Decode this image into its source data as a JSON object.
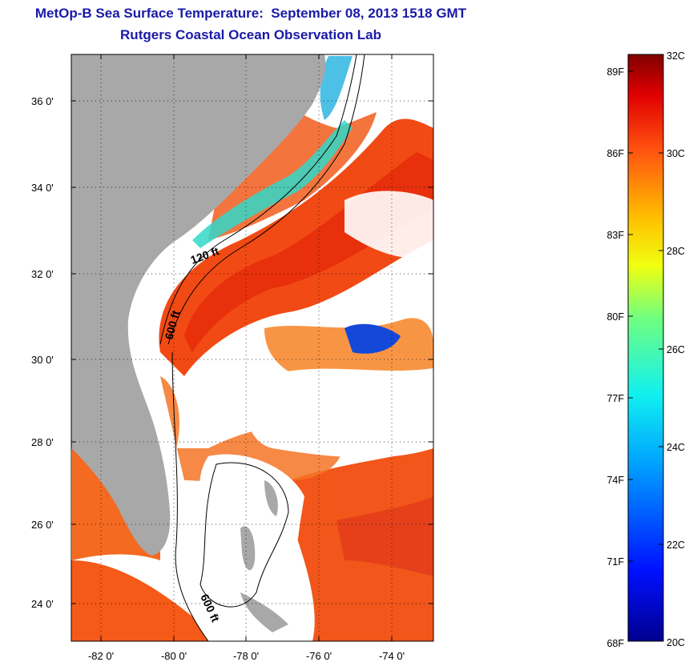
{
  "header": {
    "title": "MetOp-B Sea Surface Temperature:  September 08, 2013 1518 GMT",
    "subtitle": "Rutgers Coastal Ocean Observation Lab"
  },
  "map": {
    "lat_ticks": [
      "36 0'",
      "34 0'",
      "32 0'",
      "30 0'",
      "28 0'",
      "26 0'",
      "24 0'"
    ],
    "lon_ticks": [
      "-82 0'",
      "-80 0'",
      "-78 0'",
      "-76 0'",
      "-74 0'"
    ],
    "isobath_labels": [
      "120 ft",
      "600 ft",
      "600 ft"
    ],
    "colors": {
      "land": "#a8a8a8",
      "cloud": "#ffffff",
      "warm": "#f03a10",
      "orange": "#f77a20",
      "cool": "#30e0d0",
      "cold": "#1040d8"
    }
  },
  "colorbar": {
    "fahrenheit_labels": [
      "89F",
      "86F",
      "83F",
      "80F",
      "77F",
      "74F",
      "71F",
      "68F"
    ],
    "celsius_labels": [
      "32C",
      "30C",
      "28C",
      "26C",
      "24C",
      "22C",
      "20C"
    ],
    "min_c": 20,
    "max_c": 32
  }
}
